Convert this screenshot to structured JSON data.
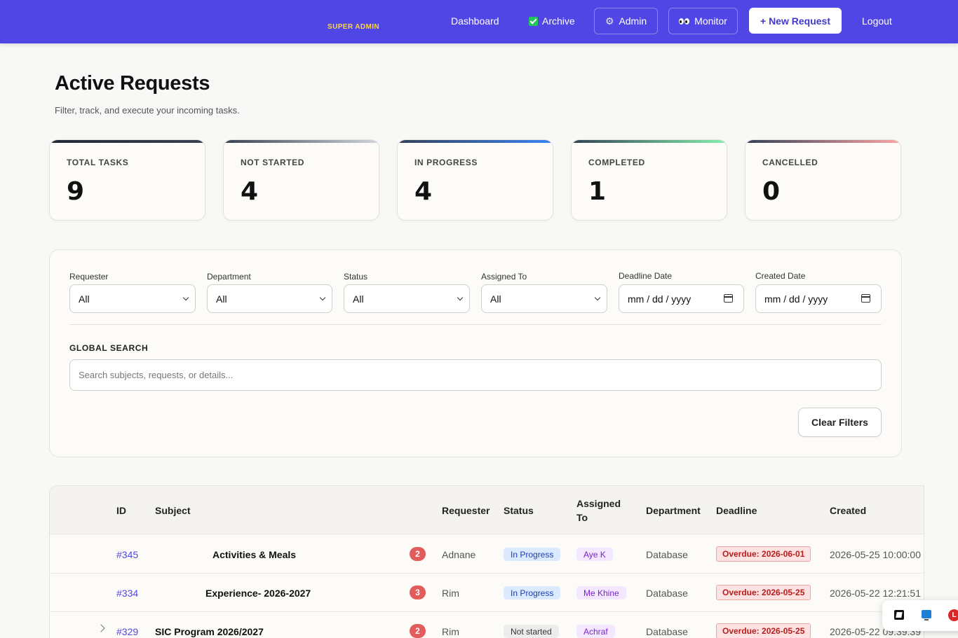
{
  "nav": {
    "role_badge": "SUPER ADMIN",
    "dashboard": "Dashboard",
    "archive": "Archive",
    "admin": "Admin",
    "monitor": "Monitor",
    "new_request": "+ New Request",
    "logout": "Logout",
    "bg_color": "#4f46e5"
  },
  "header": {
    "title": "Active Requests",
    "subtitle": "Filter, track, and execute your incoming tasks."
  },
  "stats": [
    {
      "label": "TOTAL TASKS",
      "value": "9"
    },
    {
      "label": "NOT STARTED",
      "value": "4"
    },
    {
      "label": "IN PROGRESS",
      "value": "4"
    },
    {
      "label": "COMPLETED",
      "value": "1"
    },
    {
      "label": "CANCELLED",
      "value": "0"
    }
  ],
  "filters": {
    "requester": {
      "label": "Requester",
      "value": "All"
    },
    "department": {
      "label": "Department",
      "value": "All"
    },
    "status": {
      "label": "Status",
      "value": "All"
    },
    "assigned_to": {
      "label": "Assigned To",
      "value": "All"
    },
    "deadline_date": {
      "label": "Deadline Date",
      "value": "mm / dd / yyyy"
    },
    "created_date": {
      "label": "Created Date",
      "value": "mm / dd / yyyy"
    },
    "global_search_label": "GLOBAL SEARCH",
    "search_placeholder": "Search subjects, requests, or details...",
    "clear_label": "Clear Filters"
  },
  "table": {
    "columns": {
      "id": "ID",
      "subject": "Subject",
      "requester": "Requester",
      "status": "Status",
      "assigned_to": "Assigned To",
      "department": "Department",
      "deadline": "Deadline",
      "created": "Created"
    },
    "rows": [
      {
        "id": "#345",
        "subject": "Activities & Meals",
        "count": "2",
        "requester": "Adnane",
        "status": "In Progress",
        "assigned": "Aye K",
        "department": "Database",
        "deadline": "Overdue: 2026-06-01",
        "created": "2026-05-25 10:00:00"
      },
      {
        "id": "#334",
        "subject": "Experience- 2026-2027",
        "count": "3",
        "requester": "Rim",
        "status": "In Progress",
        "assigned": "Me Khine",
        "department": "Database",
        "deadline": "Overdue: 2026-05-25",
        "created": "2026-05-22 12:21:51"
      },
      {
        "id": "#329",
        "subject": "SIC Program 2026/2027",
        "count": "2",
        "requester": "Rim",
        "status": "Not started",
        "assigned": "Achraf",
        "department": "Database",
        "deadline": "Overdue: 2026-05-25",
        "created": "2026-05-22 09:39:39"
      }
    ]
  },
  "tray": {
    "l_badge": "L"
  }
}
